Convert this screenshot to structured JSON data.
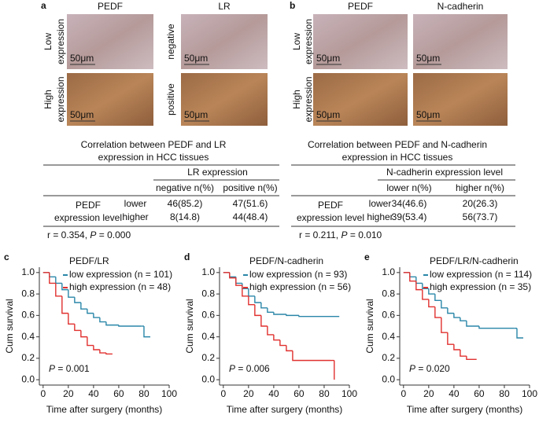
{
  "panels": [
    {
      "letter": "a",
      "columns": [
        "PEDF",
        "LR"
      ],
      "row_labels": [
        [
          "Low",
          "expression"
        ],
        [
          "High",
          "expression"
        ]
      ],
      "side_labels": [
        "negative",
        "positive"
      ],
      "scale": "50μm",
      "table": {
        "title_lines": [
          "Correlation between PEDF and LR",
          "expression in HCC tissues"
        ],
        "group_header": "LR expression",
        "col_headers": [
          "negative n(%)",
          "positive n(%)"
        ],
        "stub": [
          "PEDF",
          "expression level"
        ],
        "rows": [
          [
            "lower",
            "46(85.2)",
            "47(51.6)"
          ],
          [
            "higher",
            "8(14.8)",
            "44(48.4)"
          ]
        ],
        "stat": {
          "r": "r = 0.354,",
          "p_label": "P",
          "p": "= 0.000"
        }
      }
    },
    {
      "letter": "b",
      "columns": [
        "PEDF",
        "N-cadherin"
      ],
      "row_labels": [
        [
          "Low",
          "expression"
        ],
        [
          "High",
          "expression"
        ]
      ],
      "side_labels": [],
      "scale": "50μm",
      "table": {
        "title_lines": [
          "Correlation between PEDF and N-cadherin",
          "expression in HCC tissues"
        ],
        "group_header": "N-cadherin expression level",
        "col_headers": [
          "lower n(%)",
          "higher n(%)"
        ],
        "stub": [
          "PEDF",
          "expression level"
        ],
        "rows": [
          [
            "lower",
            "34(46.6)",
            "20(26.3)"
          ],
          [
            "higher",
            "39(53.4)",
            "56(73.7)"
          ]
        ],
        "stat": {
          "r": "r = 0.211,",
          "p_label": "P",
          "p": "= 0.010"
        }
      }
    }
  ],
  "chart_data": [
    {
      "type": "line",
      "letter": "c",
      "title": "PEDF/LR",
      "ylabel": "Cum survival",
      "xlabel": "Time after surgery (months)",
      "p_label": "P",
      "p": "= 0.001",
      "xlim": [
        -3,
        100
      ],
      "ylim": [
        -0.05,
        1.05
      ],
      "xticks": [
        0,
        20,
        40,
        60,
        80,
        100
      ],
      "yticks": [
        {
          "value": 0,
          "label": "0.0"
        },
        {
          "value": 0.2,
          "label": "0.2"
        },
        {
          "value": 0.4,
          "label": "0.4"
        },
        {
          "value": 0.6,
          "label": "0.6"
        },
        {
          "value": 0.8,
          "label": "0.8"
        },
        {
          "value": 1,
          "label": "1.0"
        }
      ],
      "series": [
        {
          "name": "low expression (n = 101)",
          "color": "#2a86a8",
          "x": [
            0,
            5,
            10,
            15,
            20,
            25,
            30,
            35,
            40,
            45,
            50,
            60,
            78,
            80,
            85
          ],
          "values": [
            1,
            0.96,
            0.9,
            0.84,
            0.77,
            0.72,
            0.66,
            0.62,
            0.58,
            0.54,
            0.51,
            0.5,
            0.5,
            0.4,
            0.4
          ]
        },
        {
          "name": "high expression (n = 48)",
          "color": "#e0302e",
          "x": [
            0,
            5,
            10,
            15,
            20,
            25,
            30,
            35,
            40,
            45,
            50,
            55
          ],
          "values": [
            1,
            0.9,
            0.78,
            0.62,
            0.52,
            0.46,
            0.4,
            0.32,
            0.28,
            0.25,
            0.24,
            0.24
          ]
        }
      ]
    },
    {
      "type": "line",
      "letter": "d",
      "title": "PEDF/N-cadherin",
      "ylabel": "Cum survival",
      "xlabel": "Time after surgery (months)",
      "p_label": "P",
      "p": "= 0.006",
      "xlim": [
        -3,
        100
      ],
      "ylim": [
        -0.05,
        1.05
      ],
      "xticks": [
        0,
        20,
        40,
        60,
        80,
        100
      ],
      "yticks": [
        {
          "value": 0,
          "label": "0.0"
        },
        {
          "value": 0.2,
          "label": "0.2"
        },
        {
          "value": 0.4,
          "label": "0.4"
        },
        {
          "value": 0.6,
          "label": "0.6"
        },
        {
          "value": 0.8,
          "label": "0.8"
        },
        {
          "value": 1,
          "label": "1.0"
        }
      ],
      "series": [
        {
          "name": "low expression (n = 93)",
          "color": "#2a86a8",
          "x": [
            0,
            5,
            10,
            15,
            20,
            25,
            30,
            35,
            40,
            50,
            60,
            92
          ],
          "values": [
            1,
            0.96,
            0.9,
            0.85,
            0.78,
            0.72,
            0.67,
            0.63,
            0.61,
            0.6,
            0.59,
            0.59
          ]
        },
        {
          "name": "high expression (n = 56)",
          "color": "#e0302e",
          "x": [
            0,
            5,
            10,
            15,
            20,
            25,
            30,
            35,
            40,
            45,
            50,
            55,
            85,
            88
          ],
          "values": [
            1,
            0.95,
            0.88,
            0.78,
            0.7,
            0.6,
            0.5,
            0.42,
            0.37,
            0.32,
            0.27,
            0.18,
            0.18,
            0
          ]
        }
      ]
    },
    {
      "type": "line",
      "letter": "e",
      "title": "PEDF/LR/N-cadherin",
      "ylabel": "Cum survival",
      "xlabel": "Time after surgery (months)",
      "p_label": "P",
      "p": "= 0.020",
      "xlim": [
        -3,
        100
      ],
      "ylim": [
        -0.05,
        1.05
      ],
      "xticks": [
        0,
        20,
        40,
        60,
        80,
        100
      ],
      "yticks": [
        {
          "value": 0,
          "label": "0.0"
        },
        {
          "value": 0.2,
          "label": "0.2"
        },
        {
          "value": 0.4,
          "label": "0.4"
        },
        {
          "value": 0.6,
          "label": "0.6"
        },
        {
          "value": 0.8,
          "label": "0.8"
        },
        {
          "value": 1,
          "label": "1.0"
        }
      ],
      "series": [
        {
          "name": "low expression (n = 114)",
          "color": "#2a86a8",
          "x": [
            0,
            5,
            10,
            15,
            20,
            25,
            30,
            35,
            40,
            45,
            50,
            60,
            88,
            90,
            95
          ],
          "values": [
            1,
            0.96,
            0.9,
            0.85,
            0.8,
            0.74,
            0.67,
            0.62,
            0.58,
            0.55,
            0.5,
            0.48,
            0.48,
            0.39,
            0.39
          ]
        },
        {
          "name": "high expression (n = 35)",
          "color": "#e0302e",
          "x": [
            0,
            5,
            10,
            15,
            20,
            25,
            30,
            35,
            40,
            45,
            50,
            58
          ],
          "values": [
            1,
            0.92,
            0.84,
            0.75,
            0.68,
            0.58,
            0.44,
            0.33,
            0.28,
            0.22,
            0.19,
            0.19
          ]
        }
      ]
    }
  ]
}
